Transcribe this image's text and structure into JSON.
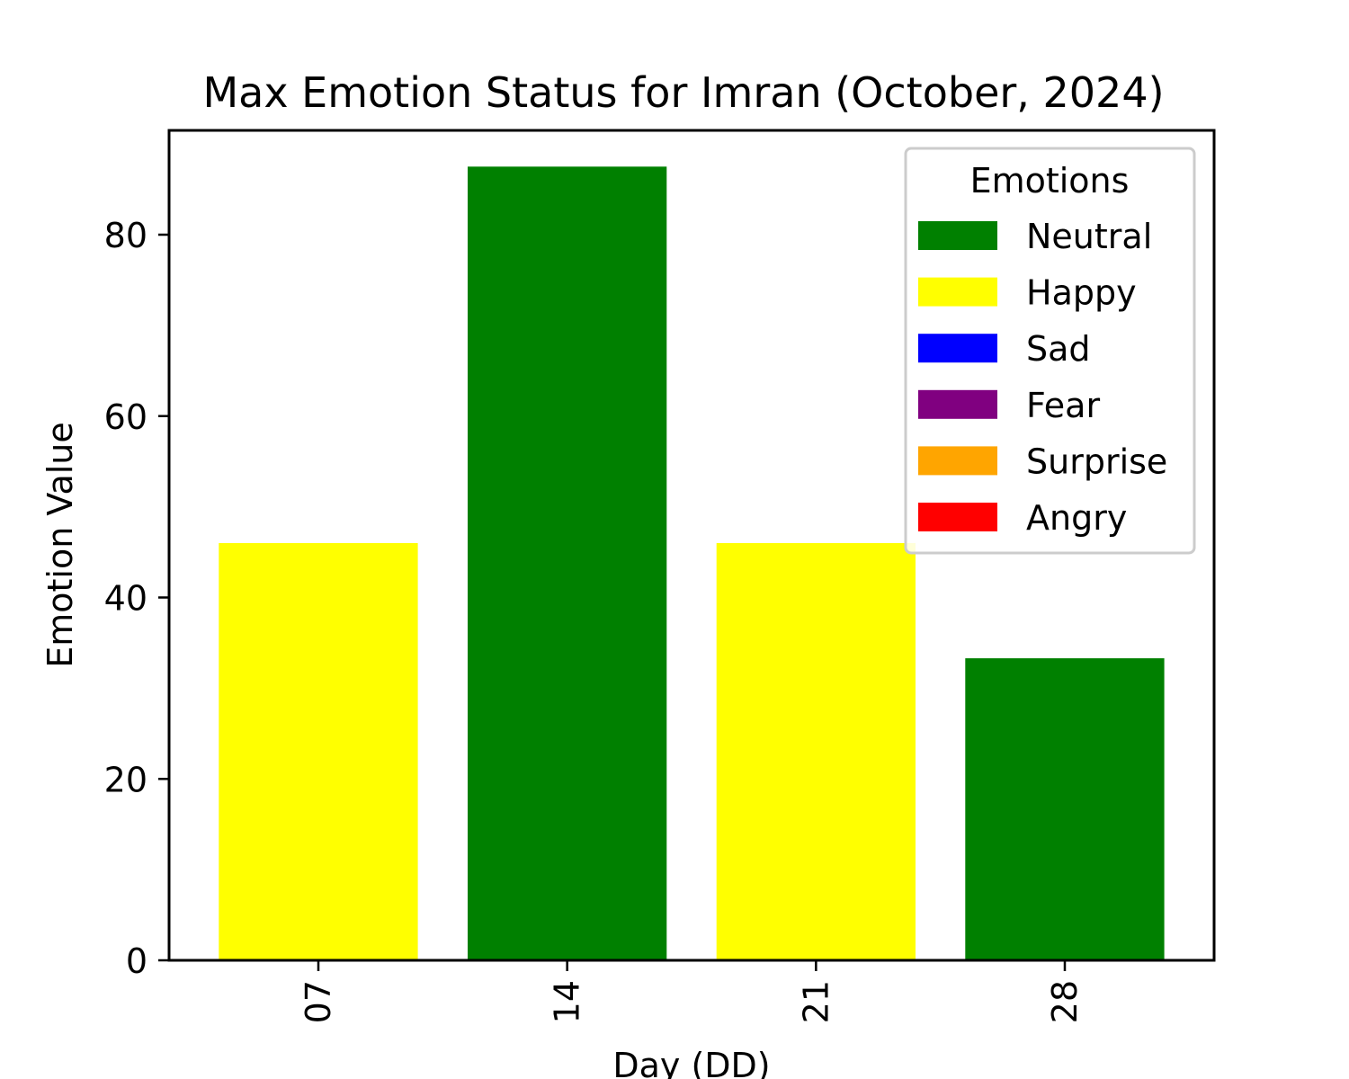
{
  "chart_data": {
    "type": "bar",
    "title": "Max Emotion Status for Imran (October, 2024)",
    "xlabel": "Day (DD)",
    "ylabel": "Emotion Value",
    "categories": [
      "07",
      "14",
      "21",
      "28"
    ],
    "values": [
      46,
      87.5,
      46,
      33.3
    ],
    "bar_emotions": [
      "Happy",
      "Neutral",
      "Happy",
      "Neutral"
    ],
    "ylim": [
      0,
      91.5
    ],
    "yticks": [
      0,
      20,
      40,
      60,
      80
    ],
    "grid": false,
    "legend": {
      "title": "Emotions",
      "position": "top-right",
      "entries": [
        {
          "label": "Neutral",
          "color": "#008000"
        },
        {
          "label": "Happy",
          "color": "#ffff00"
        },
        {
          "label": "Sad",
          "color": "#0000ff"
        },
        {
          "label": "Fear",
          "color": "#800080"
        },
        {
          "label": "Surprise",
          "color": "#ffa500"
        },
        {
          "label": "Angry",
          "color": "#ff0000"
        }
      ]
    }
  }
}
